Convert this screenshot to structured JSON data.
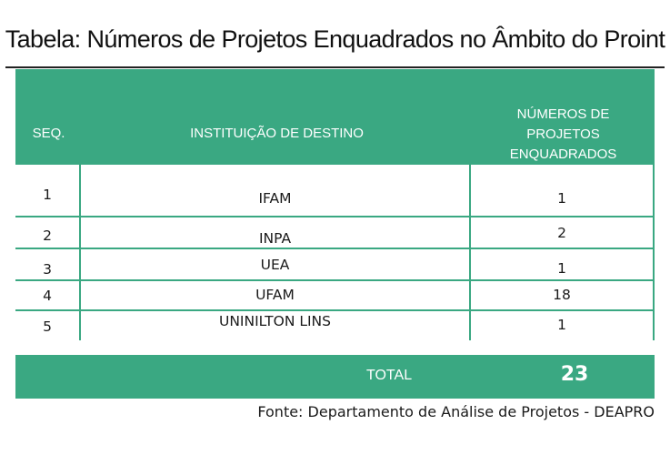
{
  "title": "Tabela: Números de Projetos Enquadrados no Âmbito do Proint",
  "header": {
    "seq": "SEQ.",
    "institution": "INSTITUIÇÃO DE DESTINO",
    "projects_line1": "NÚMEROS DE",
    "projects_line2": "PROJETOS ENQUADRADOS"
  },
  "rows": [
    {
      "seq": "1",
      "institution": "IFAM",
      "projects": "1"
    },
    {
      "seq": "2",
      "institution": "INPA",
      "projects": "2"
    },
    {
      "seq": "3",
      "institution": "UEA",
      "projects": "1"
    },
    {
      "seq": "4",
      "institution": "UFAM",
      "projects": "18"
    },
    {
      "seq": "5",
      "institution": "UNINILTON LINS",
      "projects": "1"
    }
  ],
  "total": {
    "label": "TOTAL",
    "value": "23"
  },
  "source": "Fonte: Departamento de Análise de Projetos - DEAPRO",
  "colors": {
    "accent": "#3aa882"
  }
}
